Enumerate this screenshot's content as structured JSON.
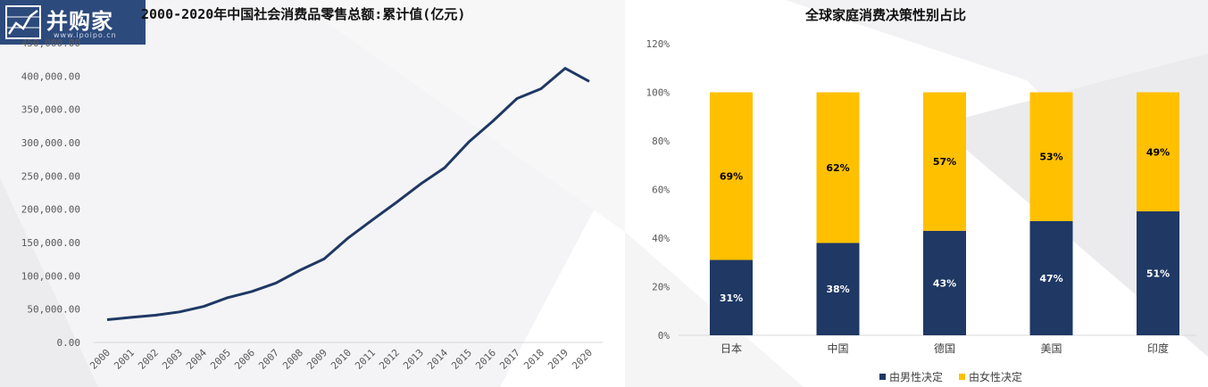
{
  "logo": {
    "brand": "并购家",
    "url": "www.ipoipo.cn"
  },
  "chart_data": [
    {
      "type": "line",
      "title": "2000-2020年中国社会消费品零售总额:累计值(亿元)",
      "x": [
        "2000",
        "2001",
        "2002",
        "2003",
        "2004",
        "2005",
        "2006",
        "2007",
        "2008",
        "2009",
        "2010",
        "2011",
        "2012",
        "2013",
        "2014",
        "2015",
        "2016",
        "2017",
        "2018",
        "2019",
        "2020"
      ],
      "values": [
        34153,
        37595,
        40911,
        45842,
        53950,
        67177,
        76410,
        89210,
        108488,
        125343,
        156998,
        183919,
        210307,
        237810,
        262394,
        300931,
        332316,
        366262,
        380987,
        411649,
        391981
      ],
      "yticks": [
        "0.00",
        "50,000.00",
        "100,000.00",
        "150,000.00",
        "200,000.00",
        "250,000.00",
        "300,000.00",
        "350,000.00",
        "400,000.00",
        "450,000.00"
      ],
      "ylim": [
        0,
        450000
      ],
      "color": "#1f3864"
    },
    {
      "type": "bar",
      "stacked": true,
      "title": "全球家庭消费决策性别占比",
      "categories": [
        "日本",
        "中国",
        "德国",
        "美国",
        "印度"
      ],
      "series": [
        {
          "name": "由男性决定",
          "values": [
            31,
            38,
            43,
            47,
            51
          ],
          "labels": [
            "31%",
            "38%",
            "43%",
            "47%",
            "51%"
          ],
          "color": "#1f3864"
        },
        {
          "name": "由女性决定",
          "values": [
            69,
            62,
            57,
            53,
            49
          ],
          "labels": [
            "69%",
            "62%",
            "57%",
            "53%",
            "49%"
          ],
          "color": "#ffc000"
        }
      ],
      "yticks": [
        "0%",
        "20%",
        "40%",
        "60%",
        "80%",
        "100%",
        "120%"
      ],
      "ylim": [
        0,
        120
      ],
      "legend": "bottom"
    }
  ]
}
